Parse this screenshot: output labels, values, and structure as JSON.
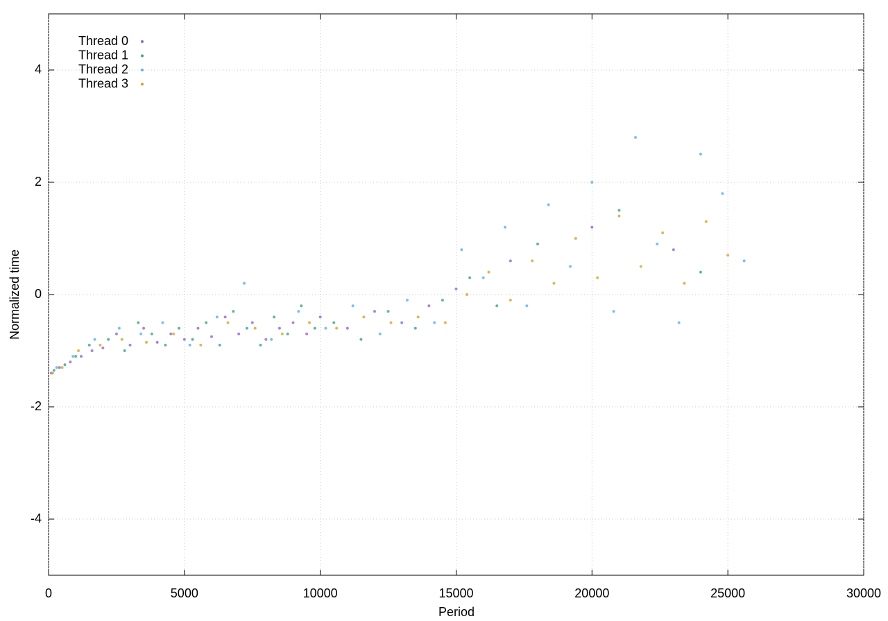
{
  "chart_data": {
    "type": "scatter",
    "xlabel": "Period",
    "ylabel": "Normalized time",
    "xlim": [
      0,
      30000
    ],
    "xticks": [
      0,
      5000,
      10000,
      15000,
      20000,
      25000,
      30000
    ],
    "ylim": [
      -5,
      5
    ],
    "yticks": [
      -4,
      -2,
      0,
      2,
      4
    ],
    "grid": true,
    "legend": "upper-left",
    "series": [
      {
        "name": "Thread 0",
        "color": "#9467d0",
        "x": [
          100,
          400,
          800,
          1200,
          1600,
          2000,
          2500,
          3000,
          3500,
          4000,
          4500,
          5000,
          5500,
          6000,
          6500,
          7000,
          7500,
          8000,
          8500,
          9000,
          9500,
          10000,
          11000,
          12000,
          13000,
          14000,
          15000,
          17000,
          20000,
          23000
        ],
        "values": [
          -1.4,
          -1.3,
          -1.2,
          -1.1,
          -1.0,
          -0.95,
          -0.7,
          -0.9,
          -0.6,
          -0.85,
          -0.7,
          -0.8,
          -0.6,
          -0.75,
          -0.4,
          -0.7,
          -0.5,
          -0.8,
          -0.6,
          -0.5,
          -0.7,
          -0.4,
          -0.6,
          -0.3,
          -0.5,
          -0.2,
          0.1,
          0.6,
          1.2,
          0.8
        ]
      },
      {
        "name": "Thread 1",
        "color": "#3aa58a",
        "x": [
          200,
          600,
          1000,
          1500,
          2200,
          2800,
          3300,
          3800,
          4300,
          4800,
          5300,
          5800,
          6300,
          6800,
          7300,
          7800,
          8300,
          8800,
          9300,
          9800,
          10500,
          11500,
          12500,
          13500,
          14500,
          15500,
          16500,
          18000,
          21000,
          24000
        ],
        "values": [
          -1.35,
          -1.25,
          -1.1,
          -0.9,
          -0.8,
          -1.0,
          -0.5,
          -0.7,
          -0.9,
          -0.6,
          -0.8,
          -0.5,
          -0.9,
          -0.3,
          -0.6,
          -0.9,
          -0.4,
          -0.7,
          -0.2,
          -0.6,
          -0.5,
          -0.8,
          -0.3,
          -0.6,
          -0.1,
          0.3,
          -0.2,
          0.9,
          1.5,
          0.4
        ]
      },
      {
        "name": "Thread 2",
        "color": "#56b4e9",
        "x": [
          300,
          900,
          1700,
          2600,
          3400,
          4200,
          5200,
          6200,
          7200,
          8200,
          9200,
          10200,
          11200,
          12200,
          13200,
          14200,
          15200,
          16000,
          16800,
          17600,
          18400,
          19200,
          20000,
          20800,
          21600,
          22400,
          23200,
          24000,
          24800,
          25600
        ],
        "values": [
          -1.3,
          -1.1,
          -0.8,
          -0.6,
          -0.7,
          -0.5,
          -0.9,
          -0.4,
          0.2,
          -0.8,
          -0.3,
          -0.6,
          -0.2,
          -0.7,
          -0.1,
          -0.5,
          0.8,
          0.3,
          1.2,
          -0.2,
          1.6,
          0.5,
          2.0,
          -0.3,
          2.8,
          0.9,
          -0.5,
          2.5,
          1.8,
          0.6
        ]
      },
      {
        "name": "Thread 3",
        "color": "#d4a52e",
        "x": [
          150,
          500,
          1100,
          1900,
          2700,
          3600,
          4600,
          5600,
          6600,
          7600,
          8600,
          9600,
          10600,
          11600,
          12600,
          13600,
          14600,
          15400,
          16200,
          17000,
          17800,
          18600,
          19400,
          20200,
          21000,
          21800,
          22600,
          23400,
          24200,
          25000
        ],
        "values": [
          -1.4,
          -1.3,
          -1.0,
          -0.9,
          -0.8,
          -0.85,
          -0.7,
          -0.9,
          -0.5,
          -0.6,
          -0.7,
          -0.5,
          -0.6,
          -0.4,
          -0.5,
          -0.4,
          -0.5,
          0.0,
          0.4,
          -0.1,
          0.6,
          0.2,
          1.0,
          0.3,
          1.4,
          0.5,
          1.1,
          0.2,
          1.3,
          0.7
        ]
      }
    ]
  }
}
